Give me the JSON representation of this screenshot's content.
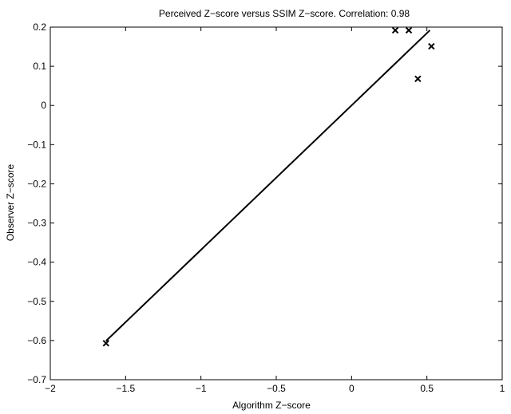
{
  "chart_data": {
    "type": "scatter",
    "title": "Perceived Z−score versus SSIM Z−score. Correlation: 0.98",
    "xlabel": "Algorithm Z−score",
    "ylabel": "Observer Z−score",
    "xlim": [
      -2,
      1
    ],
    "ylim": [
      -0.7,
      0.2
    ],
    "xticks": [
      -2,
      -1.5,
      -1,
      -0.5,
      0,
      0.5,
      1
    ],
    "xtick_labels": [
      "−2",
      "−1.5",
      "−1",
      "−0.5",
      "0",
      "0.5",
      "1"
    ],
    "yticks": [
      -0.7,
      -0.6,
      -0.5,
      -0.4,
      -0.3,
      -0.2,
      -0.1,
      0,
      0.1,
      0.2
    ],
    "ytick_labels": [
      "−0.7",
      "−0.6",
      "−0.5",
      "−0.4",
      "−0.3",
      "−0.2",
      "−0.1",
      "0",
      "0.1",
      "0.2"
    ],
    "grid": false,
    "points": [
      {
        "x": -1.63,
        "y": -0.607
      },
      {
        "x": 0.29,
        "y": 0.192
      },
      {
        "x": 0.38,
        "y": 0.192
      },
      {
        "x": 0.44,
        "y": 0.068
      },
      {
        "x": 0.53,
        "y": 0.151
      }
    ],
    "fit_line": {
      "x": [
        -1.63,
        0.52
      ],
      "y": [
        -0.601,
        0.192
      ]
    },
    "marker": "x",
    "colors": {
      "marker": "#000000",
      "line": "#000000",
      "axes": "#000000"
    }
  }
}
